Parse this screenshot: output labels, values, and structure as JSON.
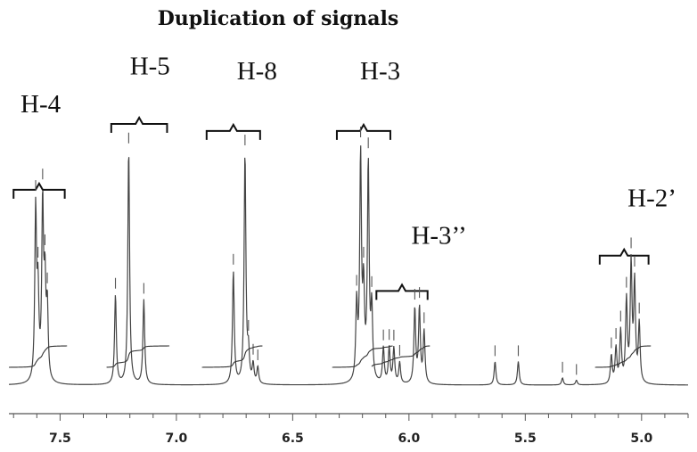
{
  "chart_data": {
    "type": "line",
    "title": "Duplication of signals",
    "xlabel": "",
    "ylabel": "",
    "x_unit": "ppm",
    "xlim": [
      7.72,
      4.8
    ],
    "x_reversed": true,
    "grid": false,
    "x_ticks": [
      {
        "value": 7.5,
        "label": "7.5"
      },
      {
        "value": 7.0,
        "label": "7.0"
      },
      {
        "value": 6.5,
        "label": "6.5"
      },
      {
        "value": 6.0,
        "label": "6.0"
      },
      {
        "value": 5.5,
        "label": "5.5"
      },
      {
        "value": 5.0,
        "label": "5.0"
      }
    ],
    "peaks": [
      {
        "x": 7.605,
        "y": 0.72
      },
      {
        "x": 7.595,
        "y": 0.35
      },
      {
        "x": 7.575,
        "y": 0.74
      },
      {
        "x": 7.565,
        "y": 0.38
      },
      {
        "x": 7.555,
        "y": 0.3
      },
      {
        "x": 7.262,
        "y": 0.38
      },
      {
        "x": 7.205,
        "y": 1.0
      },
      {
        "x": 7.14,
        "y": 0.36
      },
      {
        "x": 6.755,
        "y": 0.48
      },
      {
        "x": 6.705,
        "y": 0.98
      },
      {
        "x": 6.69,
        "y": 0.12
      },
      {
        "x": 6.67,
        "y": 0.08
      },
      {
        "x": 6.65,
        "y": 0.07
      },
      {
        "x": 6.225,
        "y": 0.32
      },
      {
        "x": 6.208,
        "y": 0.95
      },
      {
        "x": 6.195,
        "y": 0.36
      },
      {
        "x": 6.175,
        "y": 0.92
      },
      {
        "x": 6.16,
        "y": 0.3
      },
      {
        "x": 6.11,
        "y": 0.15
      },
      {
        "x": 6.085,
        "y": 0.15
      },
      {
        "x": 6.065,
        "y": 0.15
      },
      {
        "x": 6.04,
        "y": 0.09
      },
      {
        "x": 5.975,
        "y": 0.32
      },
      {
        "x": 5.955,
        "y": 0.32
      },
      {
        "x": 5.935,
        "y": 0.22
      },
      {
        "x": 5.63,
        "y": 0.1
      },
      {
        "x": 5.53,
        "y": 0.1
      },
      {
        "x": 5.34,
        "y": 0.03
      },
      {
        "x": 5.28,
        "y": 0.02
      },
      {
        "x": 5.13,
        "y": 0.12
      },
      {
        "x": 5.11,
        "y": 0.15
      },
      {
        "x": 5.09,
        "y": 0.22
      },
      {
        "x": 5.065,
        "y": 0.35
      },
      {
        "x": 5.045,
        "y": 0.5
      },
      {
        "x": 5.03,
        "y": 0.42
      },
      {
        "x": 5.01,
        "y": 0.25
      }
    ],
    "annotations": [
      {
        "label": "H-4",
        "x_from": 7.7,
        "x_to": 7.48,
        "level": 0.83,
        "text_level": 1.16,
        "text_x": 7.67
      },
      {
        "label": "H-5",
        "x_from": 7.28,
        "x_to": 7.04,
        "level": 1.11,
        "text_level": 1.32,
        "text_x": 7.2
      },
      {
        "label": "H-8",
        "x_from": 6.87,
        "x_to": 6.64,
        "level": 1.08,
        "text_level": 1.3,
        "text_x": 6.74
      },
      {
        "label": "H-3",
        "x_from": 6.31,
        "x_to": 6.08,
        "level": 1.08,
        "text_level": 1.3,
        "text_x": 6.21
      },
      {
        "label": "H-3’’",
        "x_from": 6.14,
        "x_to": 5.92,
        "level": 0.4,
        "text_level": 0.6,
        "text_x": 5.99
      },
      {
        "label": "H-2’",
        "x_from": 5.18,
        "x_to": 4.97,
        "level": 0.55,
        "text_level": 0.76,
        "text_x": 5.06
      }
    ]
  }
}
